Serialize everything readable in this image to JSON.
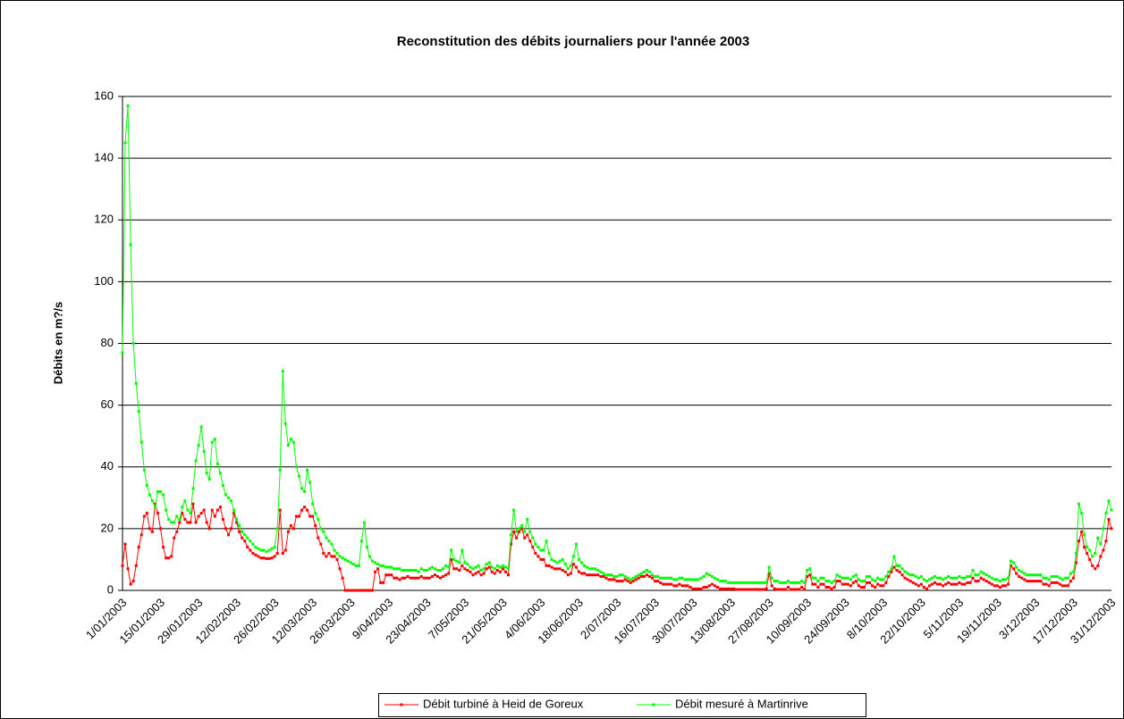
{
  "chart_data": {
    "type": "line",
    "title": "Reconstitution des débits journaliers pour l'année 2003",
    "y_label": "Débits en m?/s",
    "ylim": [
      0,
      160
    ],
    "yticks": [
      0,
      20,
      40,
      60,
      80,
      100,
      120,
      140,
      160
    ],
    "grid": true,
    "legend": "bottom",
    "categories": [
      "1/01/2003",
      null,
      null,
      null,
      null,
      null,
      null,
      null,
      null,
      null,
      null,
      null,
      null,
      null,
      "15/01/2003",
      null,
      null,
      null,
      null,
      null,
      null,
      null,
      null,
      null,
      null,
      null,
      null,
      null,
      "29/01/2003",
      null,
      null,
      null,
      null,
      null,
      null,
      null,
      null,
      null,
      null,
      null,
      null,
      null,
      "12/02/2003",
      null,
      null,
      null,
      null,
      null,
      null,
      null,
      null,
      null,
      null,
      null,
      null,
      null,
      "26/02/2003",
      null,
      null,
      null,
      null,
      null,
      null,
      null,
      null,
      null,
      null,
      null,
      null,
      null,
      "12/03/2003",
      null,
      null,
      null,
      null,
      null,
      null,
      null,
      null,
      null,
      null,
      null,
      null,
      null,
      "26/03/2003",
      null,
      null,
      null,
      null,
      null,
      null,
      null,
      null,
      null,
      null,
      null,
      null,
      null,
      "9/04/2003",
      null,
      null,
      null,
      null,
      null,
      null,
      null,
      null,
      null,
      null,
      null,
      null,
      null,
      "23/04/2003",
      null,
      null,
      null,
      null,
      null,
      null,
      null,
      null,
      null,
      null,
      null,
      null,
      null,
      "7/05/2003",
      null,
      null,
      null,
      null,
      null,
      null,
      null,
      null,
      null,
      null,
      null,
      null,
      null,
      "21/05/2003",
      null,
      null,
      null,
      null,
      null,
      null,
      null,
      null,
      null,
      null,
      null,
      null,
      null,
      "4/06/2003",
      null,
      null,
      null,
      null,
      null,
      null,
      null,
      null,
      null,
      null,
      null,
      null,
      null,
      "18/06/2003",
      null,
      null,
      null,
      null,
      null,
      null,
      null,
      null,
      null,
      null,
      null,
      null,
      null,
      "2/07/2003",
      null,
      null,
      null,
      null,
      null,
      null,
      null,
      null,
      null,
      null,
      null,
      null,
      null,
      "16/07/2003",
      null,
      null,
      null,
      null,
      null,
      null,
      null,
      null,
      null,
      null,
      null,
      null,
      null,
      "30/07/2003",
      null,
      null,
      null,
      null,
      null,
      null,
      null,
      null,
      null,
      null,
      null,
      null,
      null,
      "13/08/2003",
      null,
      null,
      null,
      null,
      null,
      null,
      null,
      null,
      null,
      null,
      null,
      null,
      null,
      "27/08/2003",
      null,
      null,
      null,
      null,
      null,
      null,
      null,
      null,
      null,
      null,
      null,
      null,
      null,
      "10/09/2003",
      null,
      null,
      null,
      null,
      null,
      null,
      null,
      null,
      null,
      null,
      null,
      null,
      null,
      "24/09/2003",
      null,
      null,
      null,
      null,
      null,
      null,
      null,
      null,
      null,
      null,
      null,
      null,
      null,
      "8/10/2003",
      null,
      null,
      null,
      null,
      null,
      null,
      null,
      null,
      null,
      null,
      null,
      null,
      null,
      "22/10/2003",
      null,
      null,
      null,
      null,
      null,
      null,
      null,
      null,
      null,
      null,
      null,
      null,
      null,
      "5/11/2003",
      null,
      null,
      null,
      null,
      null,
      null,
      null,
      null,
      null,
      null,
      null,
      null,
      null,
      "19/11/2003",
      null,
      null,
      null,
      null,
      null,
      null,
      null,
      null,
      null,
      null,
      null,
      null,
      null,
      "3/12/2003",
      null,
      null,
      null,
      null,
      null,
      null,
      null,
      null,
      null,
      null,
      null,
      null,
      null,
      "17/12/2003",
      null,
      null,
      null,
      null,
      null,
      null,
      null,
      null,
      null,
      null,
      null,
      null,
      null,
      "31/12/2003"
    ],
    "series": [
      {
        "name": "Débit turbiné à Heid de Goreux",
        "color": "#ff0000",
        "values": [
          8,
          15,
          7,
          2,
          3,
          8,
          14,
          18,
          24,
          25,
          20,
          19,
          28,
          25,
          20,
          14,
          10.5,
          10.5,
          11,
          17,
          19,
          22,
          25,
          23,
          22,
          22,
          28,
          22,
          24,
          25,
          26,
          22,
          20,
          26,
          24,
          26,
          27,
          23,
          20,
          18,
          20,
          25,
          22,
          19,
          17,
          16,
          14,
          13,
          12,
          11.5,
          11,
          10.5,
          10.5,
          10.3,
          10.3,
          10.5,
          11,
          12,
          26,
          12,
          13,
          19,
          21,
          20,
          24,
          24,
          26,
          27,
          26,
          24,
          24,
          21,
          17,
          15,
          12,
          11,
          12,
          11,
          11,
          10,
          7,
          4,
          0,
          0,
          0,
          0,
          0,
          0,
          0,
          0,
          0,
          0,
          0,
          6,
          7,
          2.5,
          2.5,
          5,
          5,
          5,
          4,
          4,
          3.5,
          4,
          4,
          4.5,
          4,
          4,
          4,
          4,
          4.5,
          4,
          4,
          4,
          4.5,
          5,
          4.5,
          4,
          4.5,
          5,
          5.5,
          10,
          7,
          7,
          6.5,
          8,
          7,
          6.5,
          6,
          5,
          5.5,
          6,
          5,
          5.5,
          7,
          7.5,
          6,
          5.5,
          6.5,
          6,
          7,
          6,
          5,
          15,
          19,
          17,
          19,
          20,
          17,
          18,
          16,
          14,
          12,
          11,
          10,
          10,
          8,
          8,
          7.5,
          7,
          7,
          7,
          6.5,
          6,
          5,
          5.5,
          8.5,
          7.5,
          6,
          5.5,
          5.5,
          5,
          5,
          5,
          5,
          5,
          4.5,
          4.5,
          4,
          3.5,
          3.5,
          3.5,
          3,
          3,
          3,
          3.5,
          3,
          2.5,
          3,
          3.5,
          4,
          4.5,
          4.5,
          5,
          4.5,
          4,
          3,
          3,
          2.5,
          2,
          2,
          2,
          2,
          1.5,
          1.5,
          2,
          1.5,
          1.5,
          1.5,
          1,
          0.5,
          0.5,
          0.5,
          0.5,
          1,
          1,
          1.5,
          2,
          1.5,
          1,
          0.5,
          0.5,
          0.5,
          0.5,
          0.5,
          0.5,
          0.3,
          0.3,
          0.3,
          0.3,
          0.3,
          0.3,
          0.3,
          0.3,
          0.3,
          0.3,
          0.3,
          0.5,
          5.5,
          1.5,
          0.5,
          0.3,
          0.3,
          0.3,
          0.3,
          1,
          0.3,
          0.3,
          0.3,
          0.3,
          1,
          0.3,
          4.5,
          5,
          2,
          2,
          1,
          2,
          2,
          1,
          1,
          0.5,
          1,
          3,
          3,
          2,
          2,
          2,
          1.5,
          2.5,
          3,
          1.5,
          1,
          1,
          2.5,
          2.5,
          1.5,
          1,
          2,
          1.5,
          1.5,
          2.5,
          4.5,
          6,
          7.5,
          6.5,
          6,
          5,
          4,
          3.5,
          3,
          2.5,
          2,
          1.5,
          2,
          1,
          0.5,
          1.5,
          2,
          2.5,
          2,
          2,
          1.5,
          2,
          2.5,
          2,
          2,
          2,
          2.5,
          2,
          2,
          2.5,
          2.5,
          4,
          3,
          3,
          4,
          3.5,
          3,
          2.5,
          2,
          1.5,
          1.5,
          1,
          1.5,
          1.5,
          2,
          8,
          7,
          5.5,
          4.5,
          4,
          3.5,
          3,
          3,
          3,
          3,
          3,
          3,
          2,
          2,
          1.5,
          2.5,
          2.5,
          2.5,
          2,
          1.5,
          1.5,
          1.5,
          3,
          4,
          9,
          16,
          19,
          14,
          12,
          10,
          8,
          7,
          8,
          11,
          13,
          16,
          23,
          20
        ]
      },
      {
        "name": "Débit mesuré à Martinrive",
        "color": "#00ff00",
        "values": [
          77,
          145,
          157,
          112,
          80,
          67,
          58,
          48,
          39,
          34,
          31,
          29,
          27,
          32,
          32,
          31,
          26,
          23,
          22,
          22,
          24,
          23,
          27,
          29,
          26,
          25,
          33,
          42,
          47,
          53,
          45,
          38,
          36,
          48,
          49,
          41,
          38,
          34,
          31,
          30,
          29,
          26,
          23,
          21,
          19,
          18,
          17,
          16,
          15,
          14,
          13.5,
          13,
          13,
          12.5,
          13,
          13.5,
          14,
          20,
          39,
          71,
          54,
          47,
          49,
          48,
          40,
          37,
          33,
          32,
          39,
          35,
          28,
          25,
          23,
          20,
          19,
          17,
          16,
          15,
          13,
          12,
          11,
          10.5,
          10,
          9.5,
          9,
          8.5,
          8,
          8,
          16,
          22,
          14,
          11,
          9.5,
          9,
          8.5,
          8,
          8,
          7.5,
          7.5,
          7.5,
          7,
          7,
          7,
          6.5,
          6.5,
          6.5,
          6.5,
          6.5,
          6.5,
          6,
          7,
          6.5,
          6.5,
          7,
          7.5,
          7,
          6.5,
          6.5,
          7,
          8,
          7.5,
          13,
          10,
          9.5,
          9,
          13,
          9,
          8.5,
          7.5,
          7,
          7.5,
          8,
          6.5,
          7,
          8.5,
          9,
          7.5,
          7,
          8,
          7.5,
          8,
          7.5,
          7,
          18,
          26,
          19,
          20,
          21,
          19,
          23,
          19,
          17,
          15,
          14,
          13,
          13,
          16,
          12,
          10,
          9.5,
          9,
          9.5,
          10,
          8.5,
          7,
          8,
          11,
          15,
          10,
          9,
          8,
          7.5,
          7,
          7,
          7,
          6.5,
          6,
          5.5,
          5,
          5,
          5,
          4.5,
          4.5,
          5,
          5,
          4.5,
          4,
          3.5,
          4,
          4.5,
          5,
          5.5,
          6,
          6.5,
          6,
          5,
          4.5,
          4.5,
          4,
          4,
          4,
          4,
          4,
          3.5,
          3.5,
          4,
          4,
          3.5,
          3.5,
          3.5,
          3.5,
          3.5,
          3.5,
          4,
          4.5,
          5.5,
          5,
          4.5,
          4,
          3.5,
          3,
          3,
          3,
          2.5,
          2.5,
          2.5,
          2.5,
          2.5,
          2.5,
          2.5,
          2.5,
          2.5,
          2.5,
          2.5,
          2.5,
          2.5,
          2.5,
          2.5,
          7.5,
          4,
          3,
          3,
          2.5,
          2.5,
          2.5,
          3,
          2.5,
          2.5,
          2.5,
          2.5,
          3,
          2.5,
          6.5,
          7,
          4,
          4,
          3,
          4,
          4,
          3,
          3,
          2.5,
          3,
          5,
          4.5,
          4,
          4,
          4,
          3.5,
          4.5,
          5,
          3.5,
          3,
          3,
          4.5,
          4.5,
          3.5,
          3,
          4,
          3.5,
          3.5,
          4.5,
          6,
          7,
          11,
          8,
          8,
          7,
          6,
          5.5,
          5,
          5,
          4.5,
          4,
          4.5,
          3.5,
          3,
          3.5,
          4,
          4.5,
          4,
          4,
          3.5,
          4,
          4.5,
          4,
          4,
          4,
          4.5,
          4,
          4,
          4.5,
          4.5,
          6.5,
          5,
          5,
          6,
          5.5,
          5,
          4.5,
          4,
          3.5,
          3.5,
          3,
          3.5,
          3.5,
          4,
          9.5,
          9,
          7.5,
          6.5,
          6,
          5.5,
          5,
          5,
          5,
          5,
          5,
          5,
          4,
          4,
          3.5,
          4.5,
          4.5,
          4.5,
          4,
          3.5,
          4,
          4,
          5.5,
          6,
          12,
          28,
          25,
          18,
          14,
          13,
          11,
          12,
          17,
          15,
          20,
          25,
          29,
          26
        ]
      }
    ]
  }
}
